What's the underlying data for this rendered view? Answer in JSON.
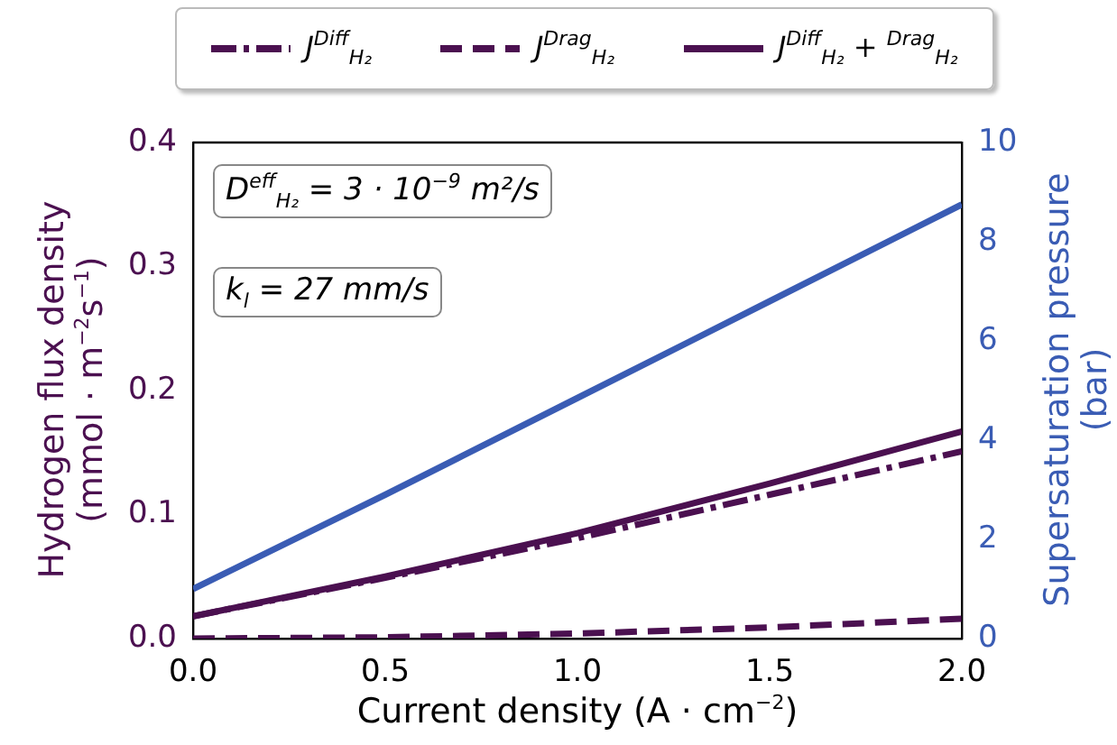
{
  "chart_data": {
    "type": "line",
    "xlabel": "Current density  (A · cm$^{−2}$)",
    "ylabel": "Hydrogen flux density (mmol · m$^{−2}$s$^{−1}$)",
    "y2label": "Supersaturation pressure (bar)",
    "x": [
      0,
      0.5,
      1,
      1.5,
      2
    ],
    "series": [
      {
        "name": "J$^{Diff}$$_{H₂}$",
        "color": "#4b1050",
        "line_style": "dashdot",
        "values": [
          0.018,
          0.049,
          0.081,
          0.116,
          0.151
        ]
      },
      {
        "name": "J$^{Drag}$$_{H₂}$",
        "color": "#4b1050",
        "line_style": "dashed",
        "values": [
          0,
          0.001,
          0.004,
          0.009,
          0.016
        ]
      },
      {
        "name": "J$^{Diff}$$_{H₂}$ + $^{Drag}$$_{H₂}$",
        "color": "#4b1050",
        "line_style": "solid",
        "values": [
          0.018,
          0.05,
          0.085,
          0.125,
          0.167
        ]
      },
      {
        "color": "#3a5cb4",
        "axis": "y2",
        "line_style": "solid",
        "values": [
          1.0,
          2.9,
          4.85,
          6.8,
          8.75
        ]
      }
    ],
    "xlim": [
      0,
      2
    ],
    "xticks": [
      {
        "value": 0,
        "label": "0.0"
      },
      {
        "value": 0.5,
        "label": "0.5"
      },
      {
        "value": 1,
        "label": "1.0"
      },
      {
        "value": 1.5,
        "label": "1.5"
      },
      {
        "value": 2,
        "label": "2.0"
      }
    ],
    "ylim": [
      0,
      0.4
    ],
    "yticks": [
      {
        "value": 0,
        "label": "0.0"
      },
      0.1,
      0.2,
      0.3,
      0.4
    ],
    "y2lim": [
      0,
      10
    ],
    "y2ticks": [
      0,
      2,
      4,
      6,
      8,
      10
    ],
    "annotations": [
      "D$^{eff}$$_{H₂}$ = 3 · 10$^{−9}$ m²/s",
      "k$_{l}$ = 27 mm/s"
    ],
    "legend": "top",
    "grid": false,
    "marker": "none"
  }
}
